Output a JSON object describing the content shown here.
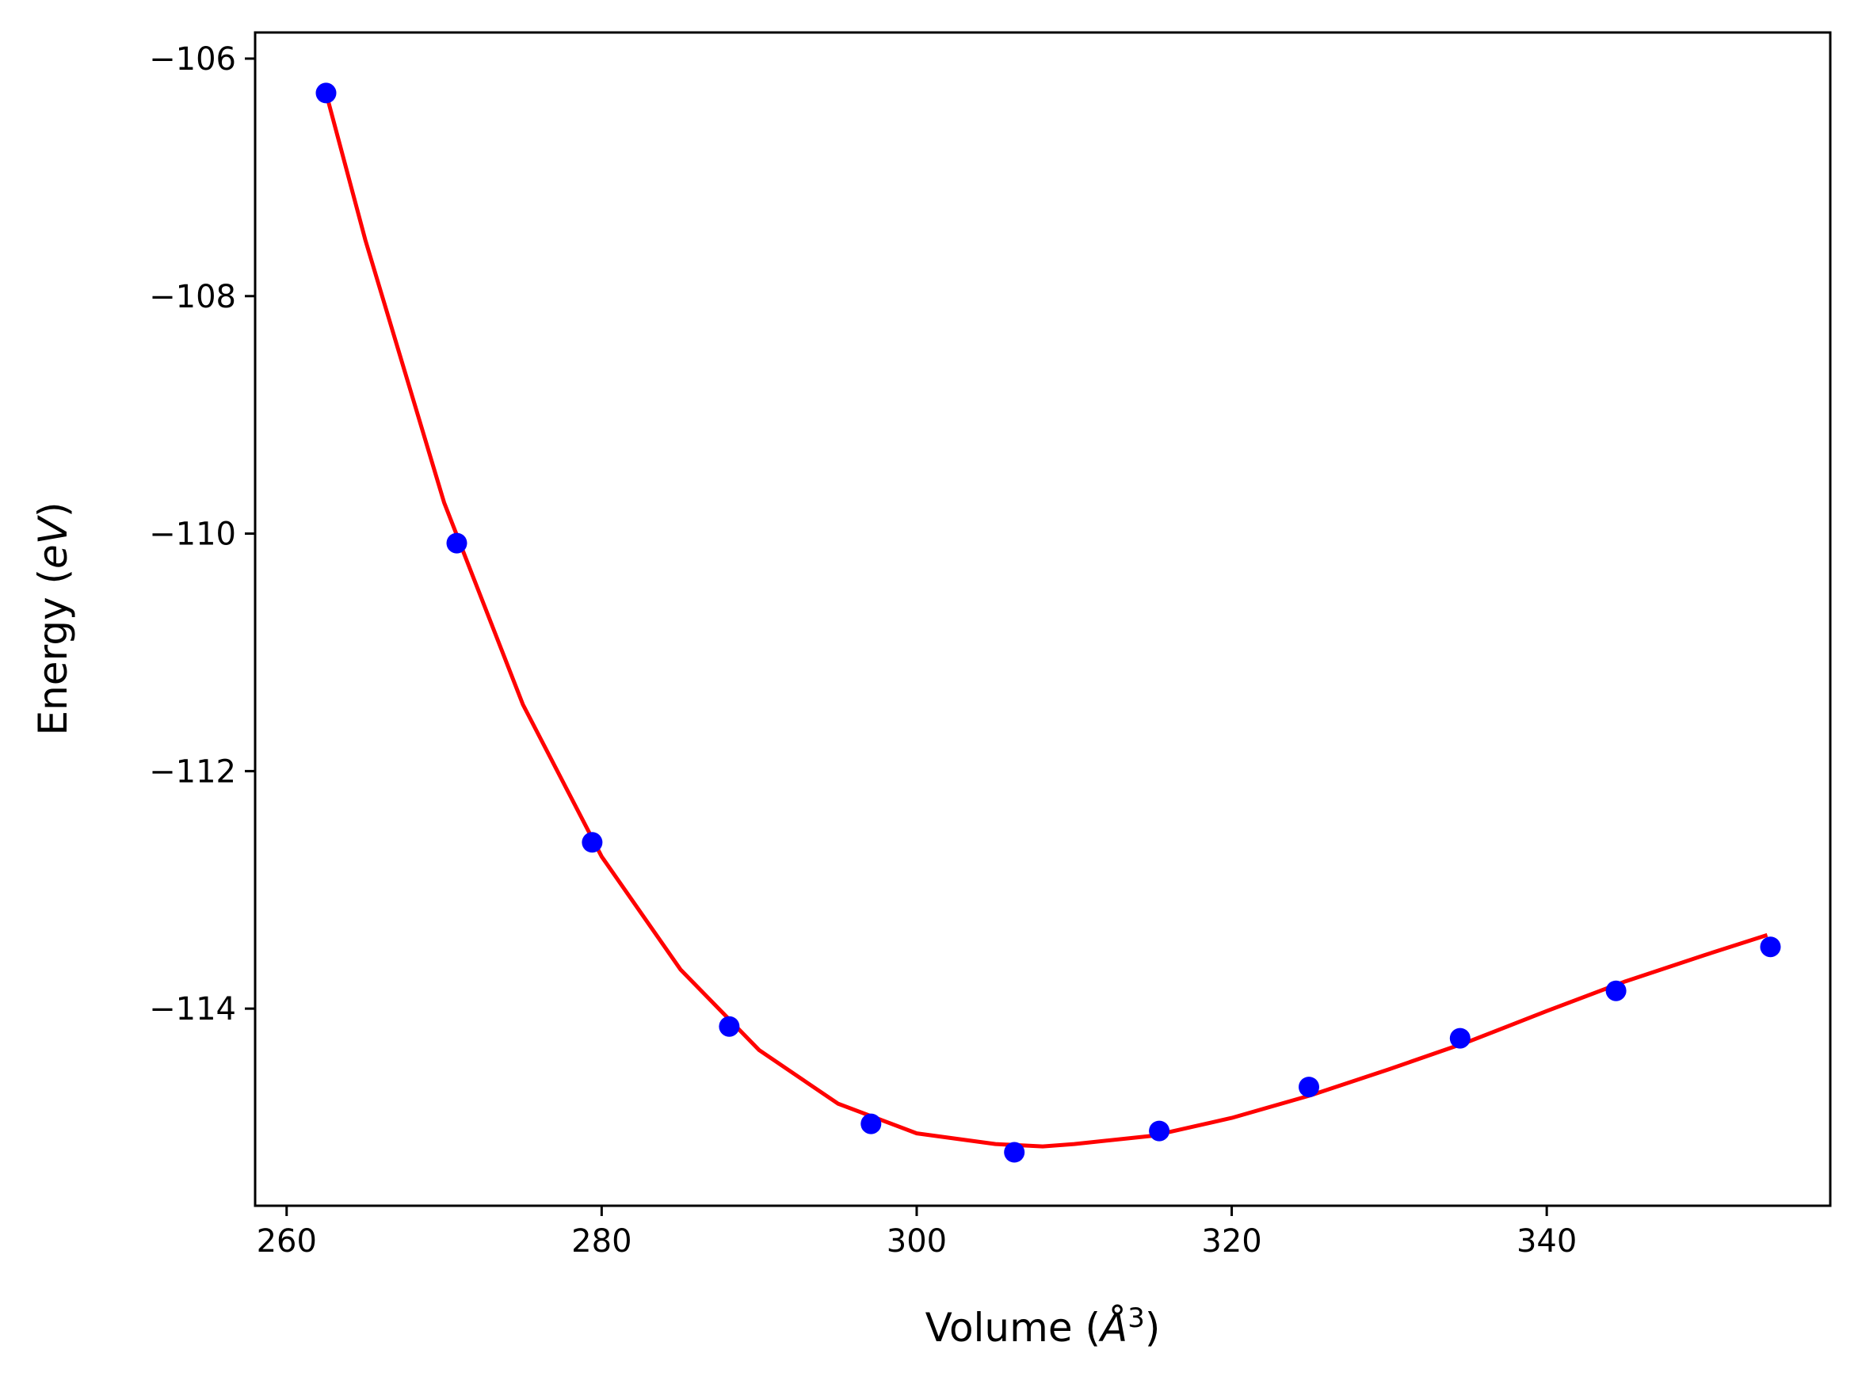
{
  "chart_data": {
    "type": "scatter",
    "xlabel_prefix": "Volume (",
    "xlabel_unit": "Å",
    "xlabel_exp": "3",
    "xlabel_suffix": ")",
    "ylabel_prefix": "Energy (",
    "ylabel_unit": "eV",
    "ylabel_suffix": ")",
    "xlim": [
      258.0,
      358.0
    ],
    "ylim": [
      -115.66,
      -105.78
    ],
    "xticks": [
      260,
      280,
      300,
      320,
      340
    ],
    "xtick_labels": [
      "260",
      "280",
      "300",
      "320",
      "340"
    ],
    "yticks": [
      -106,
      -108,
      -110,
      -112,
      -114
    ],
    "ytick_labels": [
      "−106",
      "−108",
      "−110",
      "−112",
      "−114"
    ],
    "grid": false,
    "series": [
      {
        "kind": "points",
        "color": "#0000ff",
        "x": [
          262.5,
          270.8,
          279.4,
          288.1,
          297.1,
          306.2,
          315.4,
          324.9,
          334.5,
          344.4,
          354.2
        ],
        "y": [
          -106.29,
          -110.08,
          -112.6,
          -114.15,
          -114.97,
          -115.21,
          -115.03,
          -114.66,
          -114.25,
          -113.85,
          -113.48
        ]
      },
      {
        "kind": "line",
        "color": "#ff0000",
        "x": [
          262.5,
          265,
          270,
          275,
          280,
          285,
          290,
          295,
          300,
          305,
          308,
          310,
          315,
          320,
          325,
          330,
          335,
          340,
          345,
          350,
          354.0
        ],
        "y": [
          -106.29,
          -107.53,
          -109.74,
          -111.44,
          -112.72,
          -113.67,
          -114.35,
          -114.8,
          -115.05,
          -115.14,
          -115.16,
          -115.14,
          -115.07,
          -114.92,
          -114.73,
          -114.51,
          -114.28,
          -114.02,
          -113.77,
          -113.55,
          -113.38
        ]
      }
    ]
  }
}
